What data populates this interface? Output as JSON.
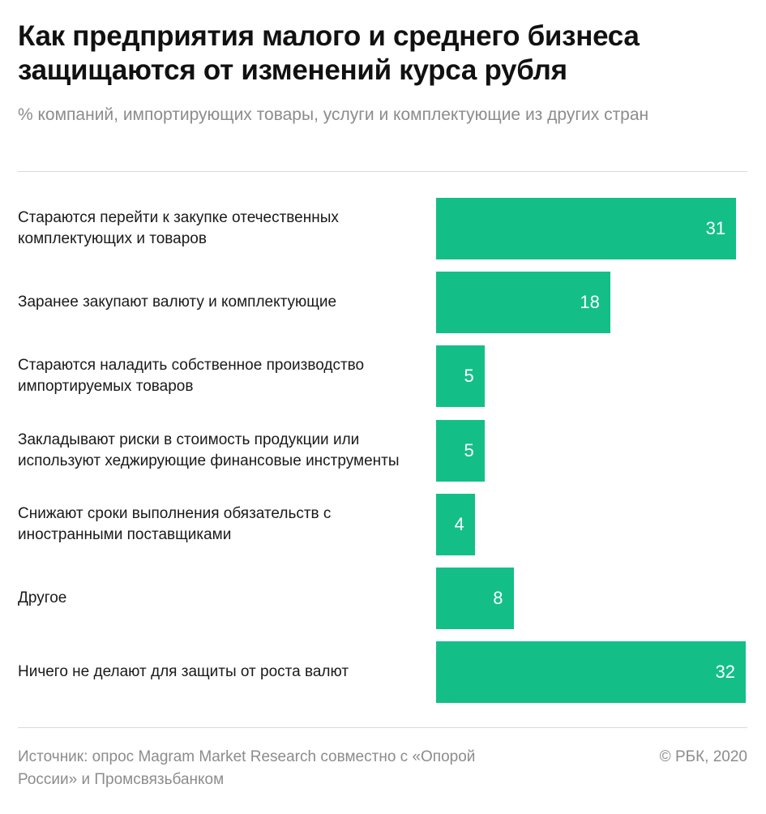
{
  "title": "Как предприятия малого и среднего бизнеса защищаются от изменений курса рубля",
  "subtitle": "% компаний, импортирующих товары, услуги и комплектующие из других стран",
  "source": "Источник: опрос Magram Market Research совместно с «Опорой России» и Промсвязьбанком",
  "copyright": "© РБК, 2020",
  "colors": {
    "bar": "#13bf87",
    "bar_label": "#ffffff"
  },
  "chart_data": {
    "type": "bar",
    "orientation": "horizontal",
    "categories": [
      "Стараются перейти к закупке отечественных комплектующих и товаров",
      "Заранее закупают валюту и комплектующие",
      "Стараются наладить собственное производство импортируемых товаров",
      "Закладывают риски в стоимость продукции или используют хеджирующие финансовые инструменты",
      "Снижают сроки выполнения обязательств с иностранными поставщиками",
      "Другое",
      "Ничего не делают для защиты от роста валют"
    ],
    "values": [
      31,
      18,
      5,
      5,
      4,
      8,
      32
    ],
    "data_labels": true,
    "grid": false,
    "xlim": [
      0,
      32
    ]
  }
}
